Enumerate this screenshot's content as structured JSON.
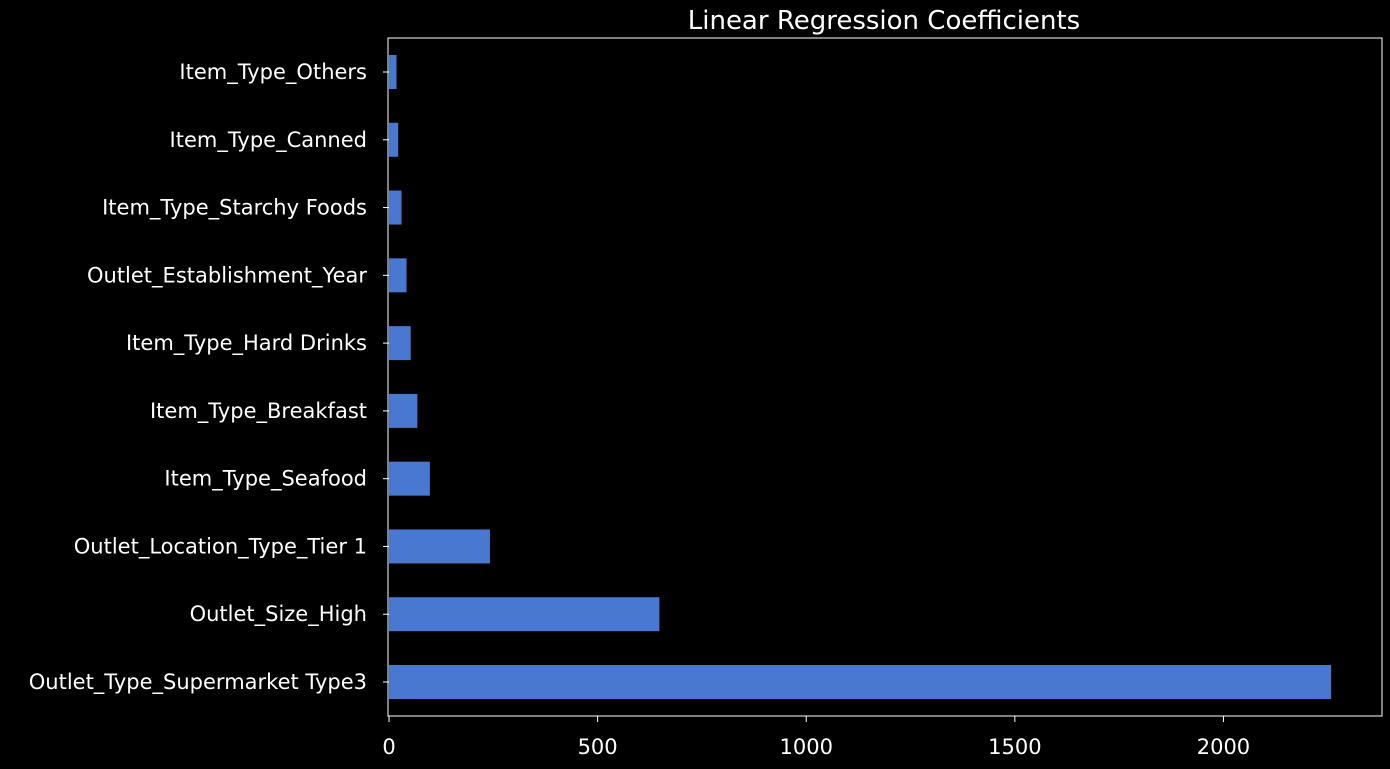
{
  "chart_data": {
    "type": "bar",
    "orientation": "horizontal",
    "title": "Linear Regression Coefficients",
    "xlabel": "",
    "ylabel": "",
    "categories": [
      "Item_Type_Others",
      "Item_Type_Canned",
      "Item_Type_Starchy Foods",
      "Outlet_Establishment_Year",
      "Item_Type_Hard Drinks",
      "Item_Type_Breakfast",
      "Item_Type_Seafood",
      "Outlet_Location_Type_Tier 1",
      "Outlet_Size_High",
      "Outlet_Type_Supermarket Type3"
    ],
    "values": [
      18,
      22,
      30,
      42,
      52,
      68,
      98,
      242,
      648,
      2258
    ],
    "xlim": [
      0,
      2380
    ],
    "xticks": [
      0,
      500,
      1000,
      1500,
      2000
    ],
    "xtick_labels": [
      "0",
      "500",
      "1000",
      "1500",
      "2000"
    ],
    "grid": false,
    "legend": "none",
    "colors": {
      "bar": "#4878d0",
      "background": "#000000",
      "text": "#ffffff",
      "axis": "#ffffff"
    }
  }
}
